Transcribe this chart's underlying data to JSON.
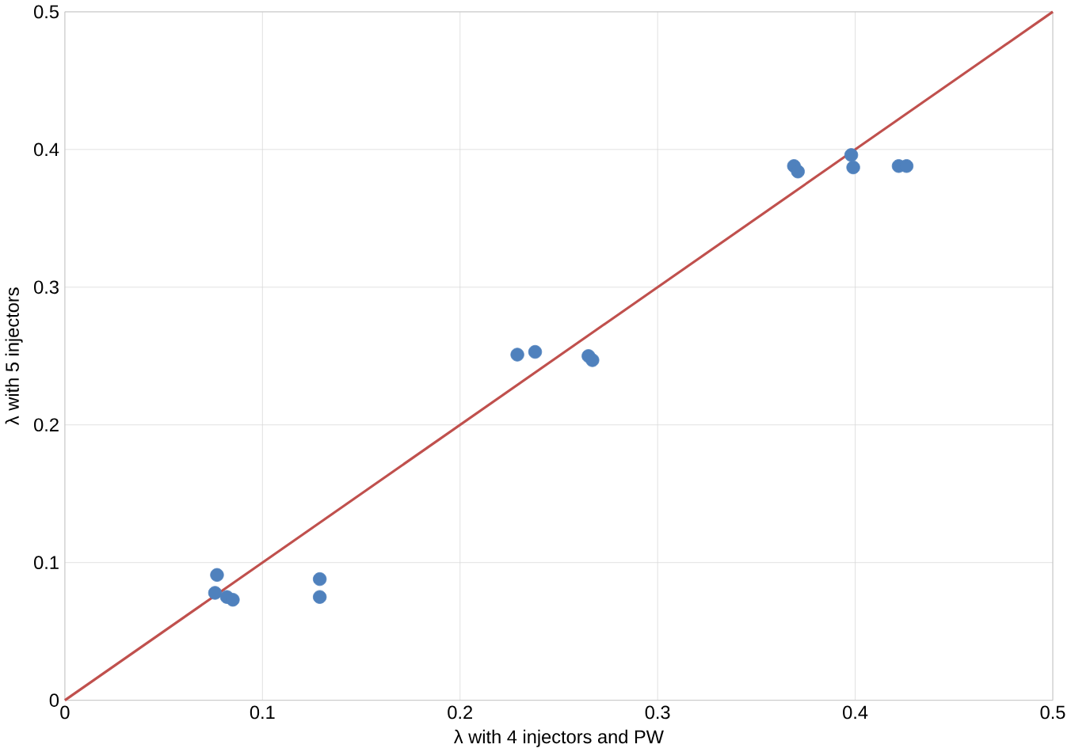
{
  "chart_data": {
    "type": "scatter",
    "xlabel": "λ with 4 injectors and PW",
    "ylabel": "λ with 5 injectors",
    "xlim": [
      0,
      0.5
    ],
    "ylim": [
      0,
      0.5
    ],
    "xticks": [
      0,
      0.1,
      0.2,
      0.3,
      0.4,
      0.5
    ],
    "yticks": [
      0,
      0.1,
      0.2,
      0.3,
      0.4,
      0.5
    ],
    "grid": true,
    "marker": "circle",
    "series": [
      {
        "color": "#4f81bd",
        "x": [
          0.077,
          0.076,
          0.082,
          0.085,
          0.129,
          0.129,
          0.229,
          0.238,
          0.265,
          0.267,
          0.369,
          0.371,
          0.398,
          0.399,
          0.422,
          0.426
        ],
        "values": [
          0.091,
          0.078,
          0.075,
          0.073,
          0.088,
          0.075,
          0.251,
          0.253,
          0.25,
          0.247,
          0.388,
          0.384,
          0.396,
          0.387,
          0.388,
          0.388
        ]
      },
      {
        "type": "line",
        "marker": "none",
        "color": "#c0504d",
        "x": [
          0,
          0.5
        ],
        "values": [
          0,
          0.5
        ]
      }
    ]
  }
}
